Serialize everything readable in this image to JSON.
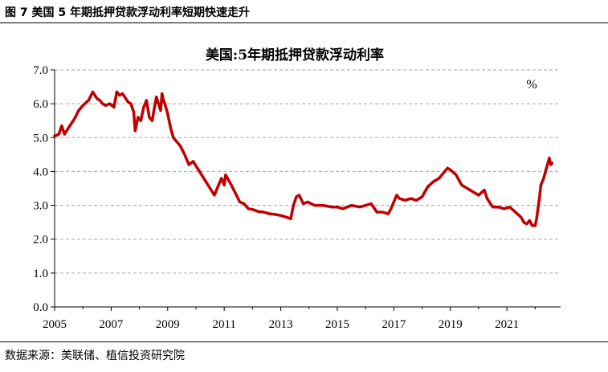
{
  "figure": {
    "caption": "图 7 美国 5 年期抵押贷款浮动利率短期快速走升",
    "source": "数据来源：美联储、植信投资研究院"
  },
  "chart_data": {
    "type": "line",
    "title": "美国:5年期抵押贷款浮动利率",
    "unit": "%",
    "xlabel": "",
    "ylabel": "",
    "xlim": [
      2005,
      2022.9
    ],
    "ylim": [
      0,
      7
    ],
    "x_ticks": [
      "2005",
      "2007",
      "2009",
      "2011",
      "2013",
      "2015",
      "2017",
      "2019",
      "2021"
    ],
    "y_ticks": [
      "0.0",
      "1.0",
      "2.0",
      "3.0",
      "4.0",
      "5.0",
      "6.0",
      "7.0"
    ],
    "grid": "horizontal dashed",
    "color": "#c00000",
    "series": [
      {
        "x": [
          2005.0,
          2005.15,
          2005.25,
          2005.35,
          2005.5,
          2005.7,
          2005.85,
          2006.0,
          2006.2,
          2006.35,
          2006.5,
          2006.6,
          2006.7,
          2006.8,
          2006.95,
          2007.1,
          2007.2,
          2007.3,
          2007.4,
          2007.6,
          2007.7,
          2007.8,
          2007.85,
          2007.95,
          2008.05,
          2008.15,
          2008.25,
          2008.35,
          2008.45,
          2008.6,
          2008.75,
          2008.8,
          2008.85,
          2008.9,
          2009.0,
          2009.1,
          2009.2,
          2009.3,
          2009.45,
          2009.6,
          2009.75,
          2009.9,
          2010.05,
          2010.2,
          2010.35,
          2010.5,
          2010.65,
          2010.8,
          2010.9,
          2011.0,
          2011.05,
          2011.15,
          2011.25,
          2011.4,
          2011.55,
          2011.7,
          2011.85,
          2012.0,
          2012.2,
          2012.4,
          2012.6,
          2012.8,
          2013.0,
          2013.2,
          2013.35,
          2013.45,
          2013.55,
          2013.65,
          2013.8,
          2013.95,
          2014.2,
          2014.5,
          2014.8,
          2015.0,
          2015.2,
          2015.5,
          2015.8,
          2016.0,
          2016.2,
          2016.4,
          2016.6,
          2016.8,
          2016.9,
          2017.0,
          2017.1,
          2017.2,
          2017.4,
          2017.6,
          2017.8,
          2018.0,
          2018.2,
          2018.4,
          2018.6,
          2018.8,
          2018.9,
          2019.0,
          2019.2,
          2019.4,
          2019.6,
          2019.8,
          2020.0,
          2020.2,
          2020.3,
          2020.5,
          2020.7,
          2020.9,
          2021.1,
          2021.3,
          2021.5,
          2021.6,
          2021.7,
          2021.8,
          2021.9,
          2022.0,
          2022.05,
          2022.1,
          2022.15,
          2022.2,
          2022.3,
          2022.4,
          2022.5,
          2022.55,
          2022.6
        ],
        "values": [
          5.05,
          5.1,
          5.35,
          5.1,
          5.3,
          5.55,
          5.8,
          5.95,
          6.1,
          6.35,
          6.15,
          6.1,
          6.0,
          5.95,
          6.0,
          5.9,
          6.35,
          6.25,
          6.3,
          6.05,
          6.0,
          5.75,
          5.2,
          5.6,
          5.5,
          5.9,
          6.1,
          5.6,
          5.5,
          6.2,
          5.8,
          6.3,
          6.1,
          6.0,
          5.7,
          5.3,
          5.0,
          4.9,
          4.75,
          4.5,
          4.2,
          4.3,
          4.1,
          3.9,
          3.7,
          3.5,
          3.3,
          3.6,
          3.8,
          3.6,
          3.9,
          3.75,
          3.6,
          3.35,
          3.1,
          3.05,
          2.9,
          2.88,
          2.82,
          2.8,
          2.75,
          2.73,
          2.7,
          2.65,
          2.6,
          3.0,
          3.25,
          3.3,
          3.05,
          3.1,
          3.0,
          3.0,
          2.95,
          2.95,
          2.9,
          3.0,
          2.95,
          3.0,
          3.05,
          2.8,
          2.8,
          2.75,
          2.9,
          3.1,
          3.3,
          3.2,
          3.15,
          3.2,
          3.15,
          3.25,
          3.55,
          3.7,
          3.8,
          4.0,
          4.1,
          4.05,
          3.9,
          3.6,
          3.5,
          3.4,
          3.3,
          3.45,
          3.2,
          2.95,
          2.95,
          2.9,
          2.95,
          2.8,
          2.65,
          2.5,
          2.45,
          2.55,
          2.4,
          2.4,
          2.6,
          2.9,
          3.2,
          3.6,
          3.8,
          4.1,
          4.4,
          4.2,
          4.25
        ]
      }
    ]
  }
}
